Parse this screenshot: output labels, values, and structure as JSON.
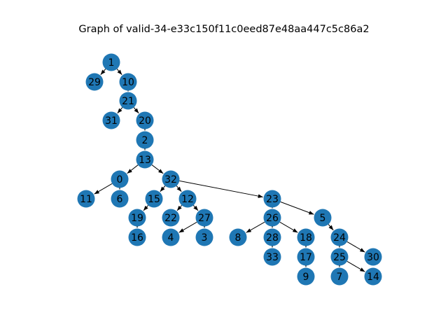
{
  "title": "Graph of valid-34-e33c150f11c0eed87e48aa447c5c86a2",
  "colors": {
    "node": "#1f77b4",
    "edge": "#000000",
    "label": "#000000"
  },
  "graph": {
    "nodes": [
      "1",
      "29",
      "10",
      "21",
      "31",
      "20",
      "2",
      "13",
      "0",
      "32",
      "11",
      "6",
      "15",
      "12",
      "23",
      "19",
      "22",
      "27",
      "26",
      "5",
      "16",
      "4",
      "3",
      "8",
      "28",
      "18",
      "24",
      "33",
      "17",
      "25",
      "30",
      "9",
      "7",
      "14"
    ],
    "edges": [
      [
        "1",
        "29"
      ],
      [
        "1",
        "10"
      ],
      [
        "10",
        "21"
      ],
      [
        "21",
        "31"
      ],
      [
        "21",
        "20"
      ],
      [
        "20",
        "2"
      ],
      [
        "2",
        "13"
      ],
      [
        "13",
        "0"
      ],
      [
        "13",
        "32"
      ],
      [
        "0",
        "11"
      ],
      [
        "0",
        "6"
      ],
      [
        "32",
        "15"
      ],
      [
        "32",
        "12"
      ],
      [
        "32",
        "23"
      ],
      [
        "15",
        "19"
      ],
      [
        "19",
        "16"
      ],
      [
        "12",
        "22"
      ],
      [
        "12",
        "27"
      ],
      [
        "27",
        "4"
      ],
      [
        "27",
        "3"
      ],
      [
        "23",
        "26"
      ],
      [
        "23",
        "5"
      ],
      [
        "26",
        "8"
      ],
      [
        "26",
        "28"
      ],
      [
        "26",
        "18"
      ],
      [
        "28",
        "33"
      ],
      [
        "18",
        "17"
      ],
      [
        "17",
        "9"
      ],
      [
        "5",
        "24"
      ],
      [
        "24",
        "25"
      ],
      [
        "24",
        "30"
      ],
      [
        "25",
        "7"
      ],
      [
        "25",
        "14"
      ]
    ]
  }
}
